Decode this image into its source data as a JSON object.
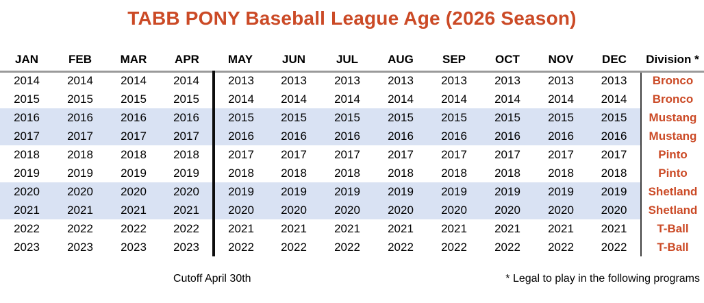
{
  "title": "TABB PONY Baseball League Age (2026 Season)",
  "table": {
    "month_headers": [
      "JAN",
      "FEB",
      "MAR",
      "APR",
      "MAY",
      "JUN",
      "JUL",
      "AUG",
      "SEP",
      "OCT",
      "NOV",
      "DEC"
    ],
    "division_header": "Division *",
    "rows": [
      {
        "months": [
          "2014",
          "2014",
          "2014",
          "2014",
          "2013",
          "2013",
          "2013",
          "2013",
          "2013",
          "2013",
          "2013",
          "2013"
        ],
        "division": "Bronco",
        "highlighted": false
      },
      {
        "months": [
          "2015",
          "2015",
          "2015",
          "2015",
          "2014",
          "2014",
          "2014",
          "2014",
          "2014",
          "2014",
          "2014",
          "2014"
        ],
        "division": "Bronco",
        "highlighted": false
      },
      {
        "months": [
          "2016",
          "2016",
          "2016",
          "2016",
          "2015",
          "2015",
          "2015",
          "2015",
          "2015",
          "2015",
          "2015",
          "2015"
        ],
        "division": "Mustang",
        "highlighted": true
      },
      {
        "months": [
          "2017",
          "2017",
          "2017",
          "2017",
          "2016",
          "2016",
          "2016",
          "2016",
          "2016",
          "2016",
          "2016",
          "2016"
        ],
        "division": "Mustang",
        "highlighted": true
      },
      {
        "months": [
          "2018",
          "2018",
          "2018",
          "2018",
          "2017",
          "2017",
          "2017",
          "2017",
          "2017",
          "2017",
          "2017",
          "2017"
        ],
        "division": "Pinto",
        "highlighted": false
      },
      {
        "months": [
          "2019",
          "2019",
          "2019",
          "2019",
          "2018",
          "2018",
          "2018",
          "2018",
          "2018",
          "2018",
          "2018",
          "2018"
        ],
        "division": "Pinto",
        "highlighted": false
      },
      {
        "months": [
          "2020",
          "2020",
          "2020",
          "2020",
          "2019",
          "2019",
          "2019",
          "2019",
          "2019",
          "2019",
          "2019",
          "2019"
        ],
        "division": "Shetland",
        "highlighted": true
      },
      {
        "months": [
          "2021",
          "2021",
          "2021",
          "2021",
          "2020",
          "2020",
          "2020",
          "2020",
          "2020",
          "2020",
          "2020",
          "2020"
        ],
        "division": "Shetland",
        "highlighted": true
      },
      {
        "months": [
          "2022",
          "2022",
          "2022",
          "2022",
          "2021",
          "2021",
          "2021",
          "2021",
          "2021",
          "2021",
          "2021",
          "2021"
        ],
        "division": "T-Ball",
        "highlighted": false
      },
      {
        "months": [
          "2023",
          "2023",
          "2023",
          "2023",
          "2022",
          "2022",
          "2022",
          "2022",
          "2022",
          "2022",
          "2022",
          "2022"
        ],
        "division": "T-Ball",
        "highlighted": false
      }
    ]
  },
  "footer": {
    "cutoff_note": "Cutoff April 30th",
    "legal_note": "* Legal to play in the following programs"
  },
  "colors": {
    "accent_orange": "#CB4A26",
    "stripe_blue": "#D9E2F3",
    "header_rule_gray": "#9A9A9A",
    "divider_black": "#0D0D0D",
    "divider_thin_gray": "#3D3D3D"
  }
}
